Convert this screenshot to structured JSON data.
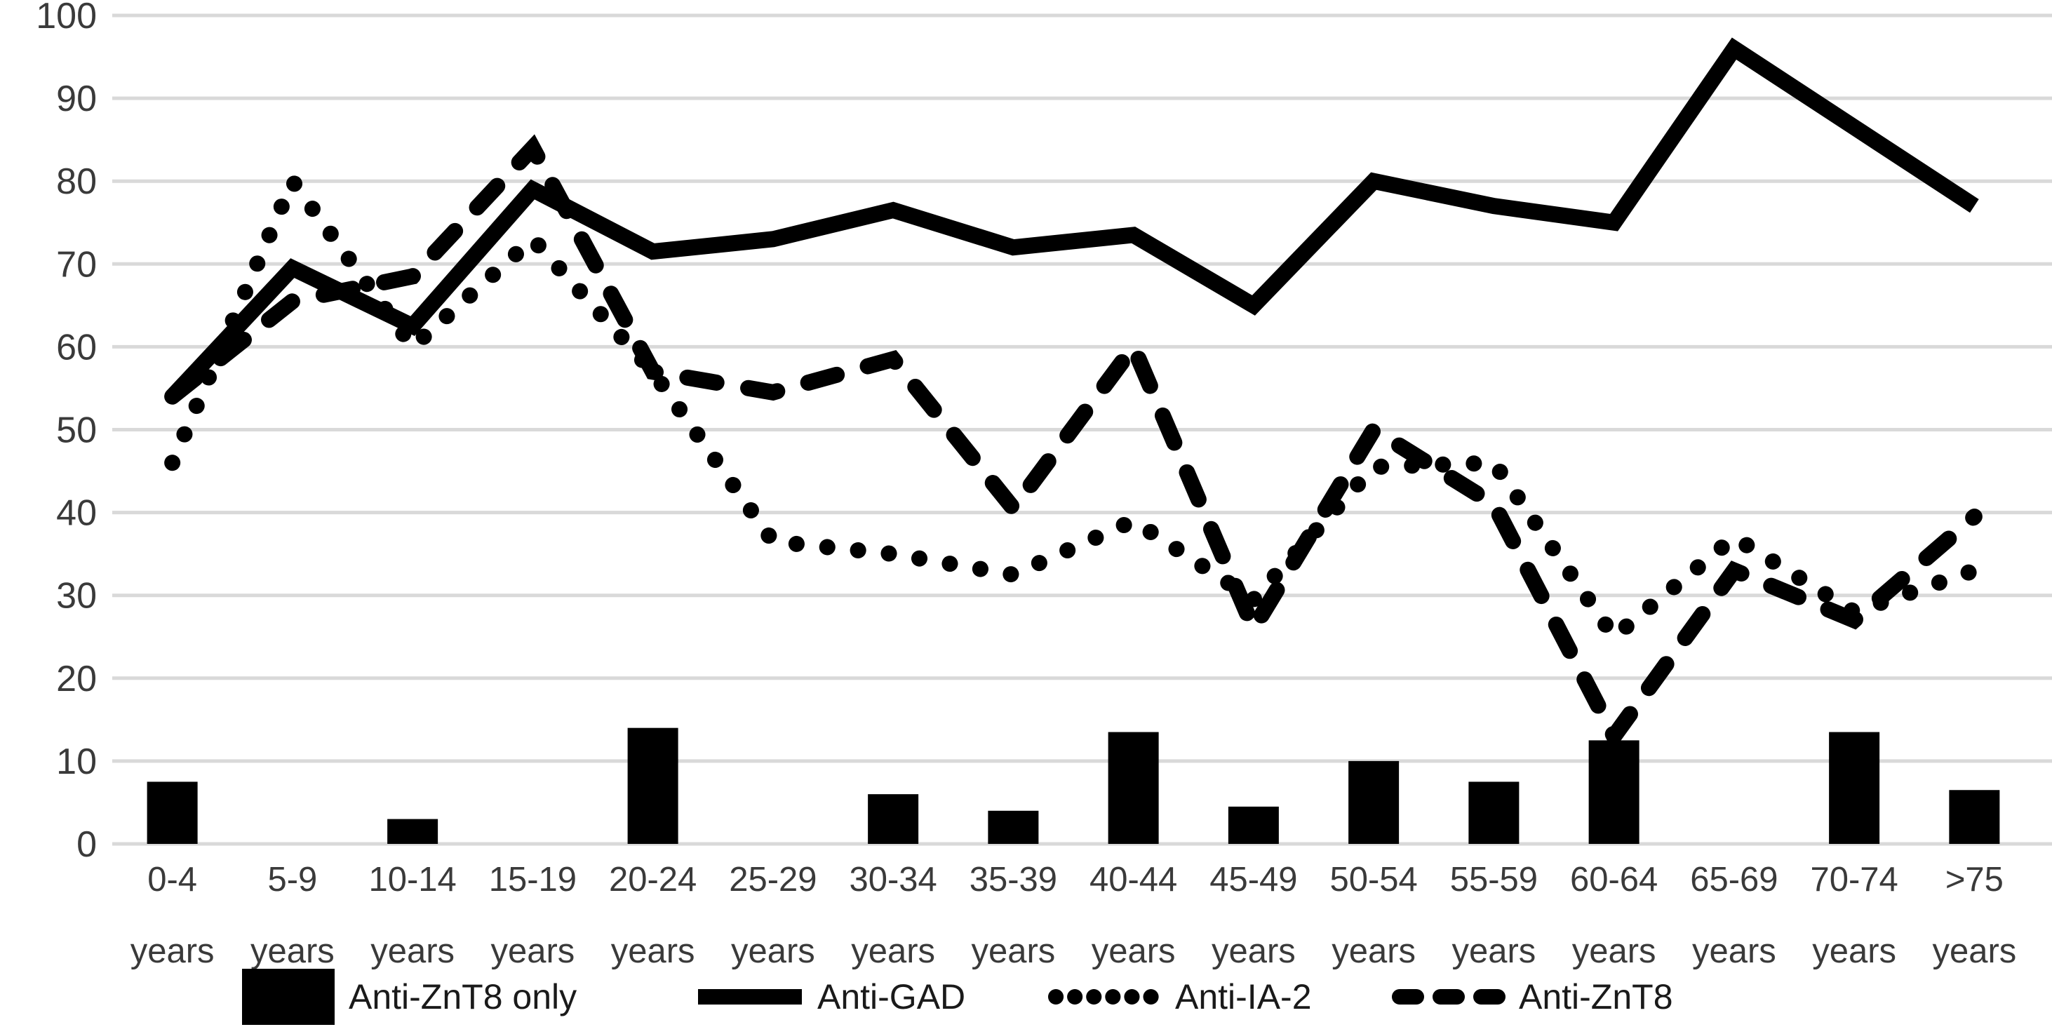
{
  "chart_data": {
    "type": "combo-bar-line",
    "title": "",
    "xlabel": "",
    "ylabel": "",
    "categories": [
      "0-4",
      "5-9",
      "10-14",
      "15-19",
      "20-24",
      "25-29",
      "30-34",
      "35-39",
      "40-44",
      "45-49",
      "50-54",
      "55-59",
      "60-64",
      "65-69",
      "70-74",
      ">75"
    ],
    "category_line2": "years",
    "ylim": [
      0,
      100
    ],
    "yticks": [
      0,
      10,
      20,
      30,
      40,
      50,
      60,
      70,
      80,
      90,
      100
    ],
    "grid": true,
    "legend_position": "bottom",
    "series": [
      {
        "name": "Anti-ZnT8 only",
        "type": "bar",
        "values": [
          7.5,
          0,
          3,
          0,
          14,
          0,
          6,
          4,
          13.5,
          4.5,
          10,
          7.5,
          12.5,
          0,
          13.5,
          6.5
        ]
      },
      {
        "name": "Anti-GAD",
        "type": "line",
        "style": "solid",
        "values": [
          54,
          69.5,
          62.5,
          79,
          71.5,
          73,
          76.5,
          72,
          73.5,
          65,
          80,
          77,
          75,
          96,
          86.5,
          77
        ]
      },
      {
        "name": "Anti-IA-2",
        "type": "line",
        "style": "dotted",
        "values": [
          46,
          80,
          60,
          73,
          57,
          36.5,
          35,
          32.5,
          39,
          29.5,
          45.5,
          46,
          25,
          37,
          28,
          33
        ]
      },
      {
        "name": "Anti-ZnT8",
        "type": "line",
        "style": "dashed",
        "values": [
          54,
          65.5,
          68.5,
          84,
          57,
          54.5,
          58.5,
          40.5,
          60,
          26,
          50,
          41,
          13,
          33,
          27,
          39.5
        ]
      }
    ],
    "colors": {
      "series_color": "#000000",
      "grid_color": "#d9d9d9",
      "tick_label_color": "#3a3a3a",
      "legend_text_color": "#1a1a1a",
      "background": "#ffffff"
    }
  }
}
